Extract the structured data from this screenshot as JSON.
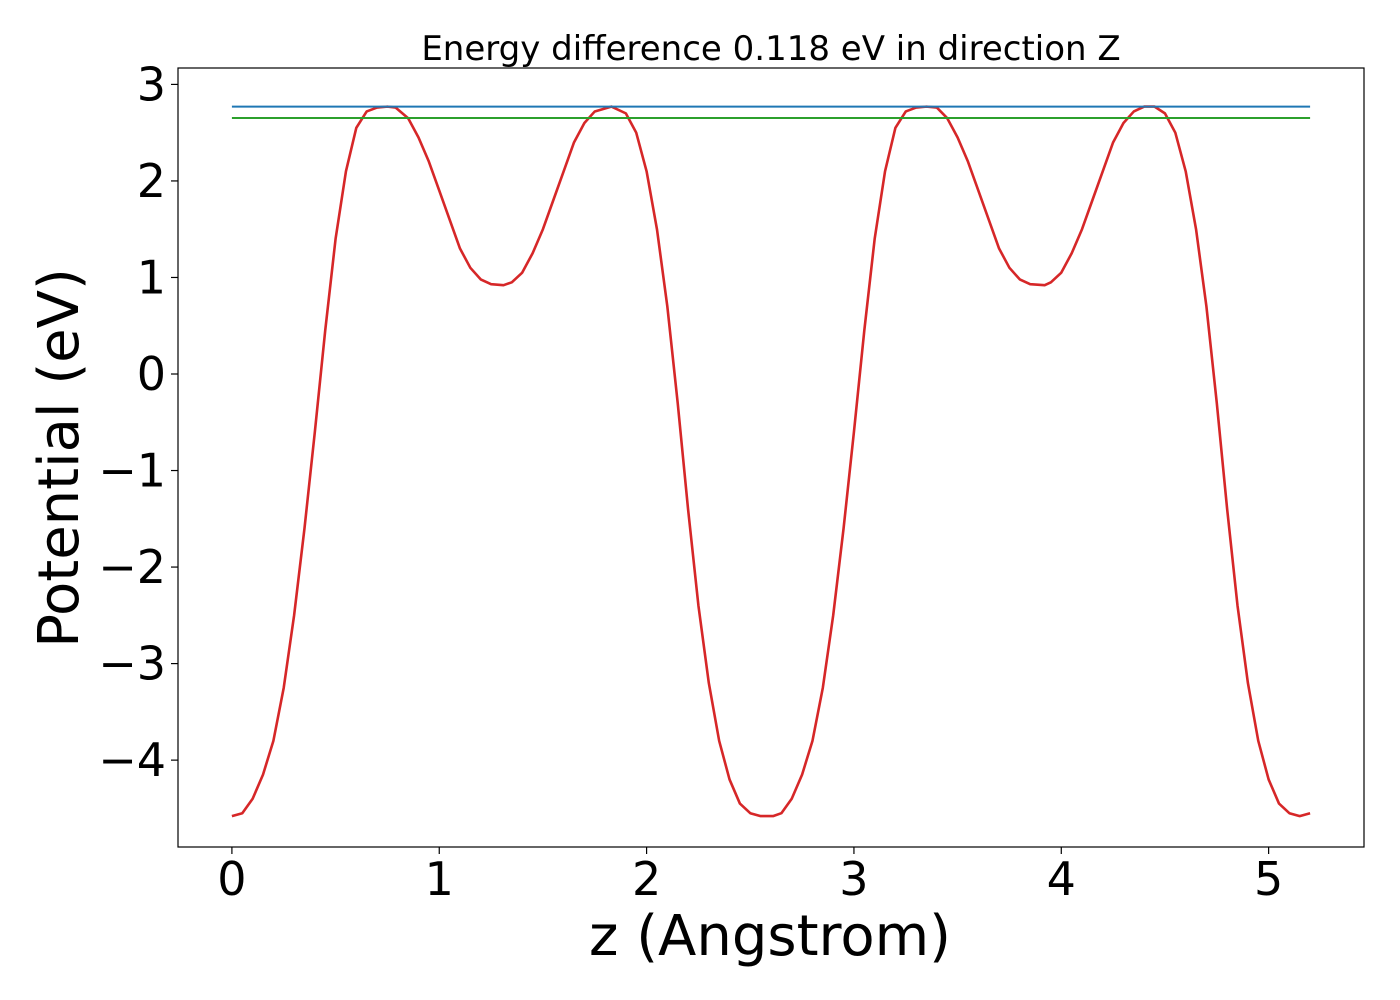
{
  "chart_data": {
    "type": "line",
    "title": "Energy difference 0.118 eV in direction Z",
    "xlabel": "z (Angstrom)",
    "ylabel": "Potential (eV)",
    "xlim": [
      -0.26,
      5.46
    ],
    "ylim": [
      -4.9,
      3.17
    ],
    "xticks": [
      0,
      1,
      2,
      3,
      4,
      5
    ],
    "xtick_labels": [
      "0",
      "1",
      "2",
      "3",
      "4",
      "5"
    ],
    "yticks": [
      3,
      2,
      1,
      0,
      -1,
      -2,
      -3,
      -4
    ],
    "ytick_labels": [
      "3",
      "2",
      "1",
      "0",
      "−1",
      "−2",
      "−3",
      "−4"
    ],
    "grid": false,
    "legend": "none",
    "series": [
      {
        "color": "#d62728",
        "x": [
          0.0,
          0.05,
          0.1,
          0.15,
          0.2,
          0.25,
          0.3,
          0.35,
          0.4,
          0.45,
          0.5,
          0.55,
          0.6,
          0.65,
          0.7,
          0.75,
          0.79,
          0.85,
          0.9,
          0.95,
          1.0,
          1.05,
          1.1,
          1.15,
          1.2,
          1.25,
          1.31,
          1.35,
          1.4,
          1.45,
          1.5,
          1.55,
          1.6,
          1.65,
          1.7,
          1.75,
          1.83,
          1.9,
          1.95,
          2.0,
          2.05,
          2.1,
          2.15,
          2.2,
          2.25,
          2.3,
          2.35,
          2.4,
          2.45,
          2.5,
          2.55,
          2.61,
          2.65,
          2.7,
          2.75,
          2.8,
          2.85,
          2.9,
          2.95,
          3.0,
          3.05,
          3.1,
          3.15,
          3.2,
          3.25,
          3.3,
          3.35,
          3.4,
          3.45,
          3.5,
          3.55,
          3.6,
          3.65,
          3.7,
          3.75,
          3.8,
          3.85,
          3.92,
          3.95,
          4.0,
          4.05,
          4.1,
          4.15,
          4.2,
          4.25,
          4.3,
          4.35,
          4.4,
          4.45,
          4.5,
          4.55,
          4.6,
          4.65,
          4.7,
          4.75,
          4.8,
          4.85,
          4.9,
          4.95,
          5.0,
          5.05,
          5.1,
          5.15,
          5.2
        ],
        "y": [
          -4.58,
          -4.55,
          -4.4,
          -4.15,
          -3.8,
          -3.25,
          -2.5,
          -1.6,
          -0.6,
          0.45,
          1.4,
          2.1,
          2.55,
          2.72,
          2.76,
          2.77,
          2.76,
          2.65,
          2.45,
          2.2,
          1.9,
          1.6,
          1.3,
          1.1,
          0.98,
          0.93,
          0.92,
          0.95,
          1.05,
          1.25,
          1.5,
          1.8,
          2.1,
          2.4,
          2.6,
          2.72,
          2.77,
          2.7,
          2.5,
          2.1,
          1.5,
          0.7,
          -0.3,
          -1.4,
          -2.4,
          -3.2,
          -3.8,
          -4.2,
          -4.45,
          -4.55,
          -4.58,
          -4.58,
          -4.55,
          -4.4,
          -4.15,
          -3.8,
          -3.25,
          -2.5,
          -1.6,
          -0.6,
          0.45,
          1.4,
          2.1,
          2.55,
          2.72,
          2.76,
          2.77,
          2.76,
          2.65,
          2.45,
          2.2,
          1.9,
          1.6,
          1.3,
          1.1,
          0.98,
          0.93,
          0.92,
          0.95,
          1.05,
          1.25,
          1.5,
          1.8,
          2.1,
          2.4,
          2.6,
          2.72,
          2.77,
          2.77,
          2.7,
          2.5,
          2.1,
          1.5,
          0.7,
          -0.3,
          -1.4,
          -2.4,
          -3.2,
          -3.8,
          -4.2,
          -4.45,
          -4.55,
          -4.58,
          -4.55
        ]
      },
      {
        "color": "#1f77b4",
        "x": [
          0.0,
          5.2
        ],
        "y": [
          2.77,
          2.77
        ]
      },
      {
        "color": "#2ca02c",
        "x": [
          0.0,
          5.2
        ],
        "y": [
          2.652,
          2.652
        ]
      }
    ]
  }
}
